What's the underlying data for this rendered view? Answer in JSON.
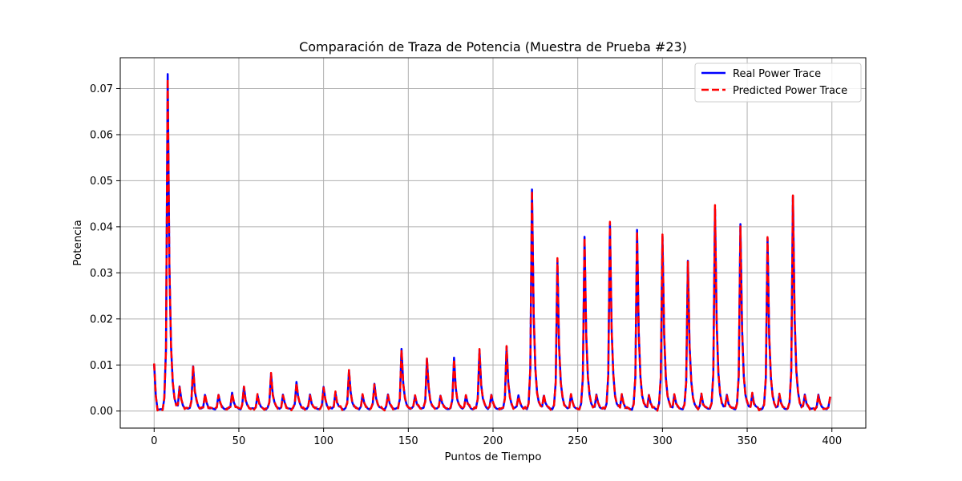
{
  "chart_data": {
    "type": "line",
    "title": "Comparación de Traza de Potencia (Muestra de Prueba #23)",
    "xlabel": "Puntos de Tiempo",
    "ylabel": "Potencia",
    "xlim": [
      -20,
      420
    ],
    "ylim": [
      -0.0037,
      0.0767
    ],
    "xticks": [
      0,
      50,
      100,
      150,
      200,
      250,
      300,
      350,
      400
    ],
    "yticks": [
      0.0,
      0.01,
      0.02,
      0.03,
      0.04,
      0.05,
      0.06,
      0.07
    ],
    "ytick_labels": [
      "0.00",
      "0.01",
      "0.02",
      "0.03",
      "0.04",
      "0.05",
      "0.06",
      "0.07"
    ],
    "grid": true,
    "legend_position": "top-right",
    "n_points": 400,
    "baseline": 0.0004,
    "initial_value": 0.0102,
    "peaks": [
      [
        8,
        0.0733
      ],
      [
        15,
        0.0053
      ],
      [
        23,
        0.0098
      ],
      [
        30,
        0.0035
      ],
      [
        38,
        0.0035
      ],
      [
        46,
        0.004
      ],
      [
        53,
        0.0052
      ],
      [
        61,
        0.0035
      ],
      [
        69,
        0.0082
      ],
      [
        76,
        0.0035
      ],
      [
        84,
        0.0065
      ],
      [
        92,
        0.0035
      ],
      [
        100,
        0.0052
      ],
      [
        107,
        0.004
      ],
      [
        115,
        0.0088
      ],
      [
        123,
        0.0035
      ],
      [
        130,
        0.006
      ],
      [
        138,
        0.0035
      ],
      [
        146,
        0.0135
      ],
      [
        154,
        0.0035
      ],
      [
        161,
        0.0112
      ],
      [
        169,
        0.0035
      ],
      [
        177,
        0.0115
      ],
      [
        184,
        0.0035
      ],
      [
        192,
        0.0132
      ],
      [
        199,
        0.0035
      ],
      [
        208,
        0.014
      ],
      [
        215,
        0.0035
      ],
      [
        223,
        0.048
      ],
      [
        230,
        0.0035
      ],
      [
        238,
        0.0325
      ],
      [
        246,
        0.0035
      ],
      [
        254,
        0.038
      ],
      [
        261,
        0.0035
      ],
      [
        269,
        0.0407
      ],
      [
        276,
        0.0035
      ],
      [
        285,
        0.0393
      ],
      [
        292,
        0.0035
      ],
      [
        300,
        0.038
      ],
      [
        307,
        0.0035
      ],
      [
        315,
        0.0328
      ],
      [
        323,
        0.0035
      ],
      [
        331,
        0.0438
      ],
      [
        338,
        0.0035
      ],
      [
        346,
        0.0405
      ],
      [
        353,
        0.0038
      ],
      [
        362,
        0.0375
      ],
      [
        369,
        0.0035
      ],
      [
        377,
        0.0467
      ],
      [
        384,
        0.0035
      ],
      [
        392,
        0.0035
      ],
      [
        399,
        0.003
      ]
    ],
    "series": [
      {
        "name": "Real Power Trace",
        "color": "#0000ff",
        "style": "solid"
      },
      {
        "name": "Predicted Power Trace",
        "color": "#ff0000",
        "style": "dashed"
      }
    ]
  }
}
